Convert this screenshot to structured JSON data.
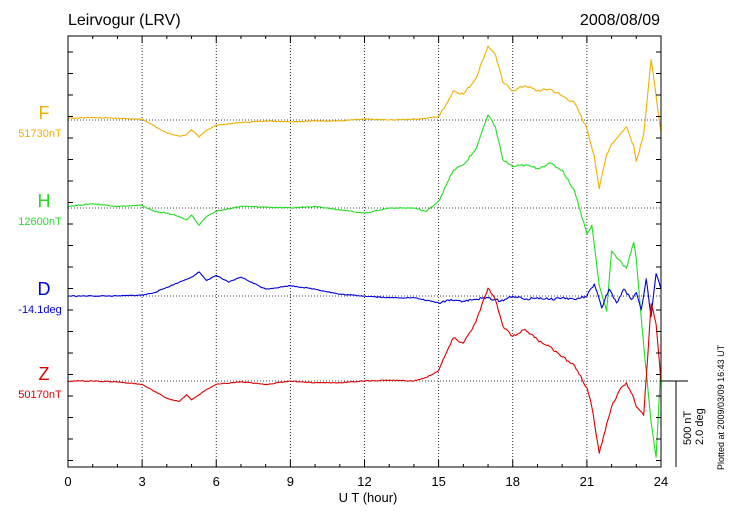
{
  "chart_data": {
    "type": "line",
    "title": "Leirvogur (LRV)",
    "date": "2008/08/09",
    "xlabel": "U T (hour)",
    "xlim": [
      0,
      24
    ],
    "xticks": [
      "0",
      "3",
      "6",
      "9",
      "12",
      "15",
      "18",
      "21",
      "24"
    ],
    "grid": true,
    "scale_bar": {
      "primary": "500 nT",
      "secondary": "2.0 deg"
    },
    "credit": "Plotted at 2009/03/09 16:43 UT",
    "colors": {
      "F": "#f0b000",
      "H": "#22dd22",
      "D": "#0000dd",
      "Z": "#dd0000"
    },
    "series": [
      {
        "name": "F",
        "baseline": "51730nT",
        "x": [
          0,
          1,
          2,
          3,
          3.5,
          4,
          4.5,
          4.8,
          5,
          5.3,
          5.6,
          6,
          7,
          8,
          9,
          10,
          11,
          12,
          13,
          14,
          14.5,
          15,
          15.3,
          15.6,
          16,
          16.5,
          17,
          17.3,
          17.6,
          18,
          18.5,
          19,
          19.5,
          20,
          20.5,
          21,
          21.3,
          21.5,
          21.8,
          22,
          22.3,
          22.6,
          22.9,
          23,
          23.3,
          23.6,
          23.8,
          24
        ],
        "y": [
          10,
          15,
          10,
          5,
          -35,
          -75,
          -95,
          -85,
          -55,
          -100,
          -60,
          -30,
          -15,
          -5,
          -10,
          -5,
          -5,
          5,
          0,
          5,
          10,
          20,
          90,
          170,
          150,
          240,
          430,
          380,
          220,
          170,
          200,
          170,
          180,
          140,
          100,
          -50,
          -210,
          -400,
          -200,
          -140,
          -90,
          -40,
          -150,
          -240,
          -80,
          350,
          140,
          -70
        ]
      },
      {
        "name": "H",
        "baseline": "12600nT",
        "x": [
          0,
          1,
          2,
          3,
          3.5,
          4,
          4.5,
          4.8,
          5,
          5.3,
          5.6,
          6,
          7,
          8,
          9,
          10,
          11,
          12,
          13,
          14,
          14.5,
          15,
          15.3,
          15.6,
          16,
          16.5,
          17,
          17.3,
          17.6,
          18,
          18.5,
          19,
          19.5,
          20,
          20.5,
          21,
          21.2,
          21.5,
          21.8,
          22,
          22.3,
          22.6,
          22.9,
          23,
          23.3,
          23.6,
          23.8,
          24
        ],
        "y": [
          10,
          25,
          10,
          15,
          -20,
          -30,
          -50,
          -70,
          -40,
          -100,
          -50,
          -20,
          10,
          5,
          0,
          10,
          -10,
          -30,
          0,
          0,
          -20,
          40,
          130,
          220,
          250,
          340,
          540,
          470,
          280,
          240,
          250,
          230,
          260,
          220,
          100,
          -150,
          -100,
          -450,
          -600,
          -250,
          -300,
          -350,
          -200,
          -300,
          -800,
          -1250,
          -1450,
          -900
        ]
      },
      {
        "name": "D",
        "baseline": "-14.1deg",
        "x": [
          0,
          1,
          2,
          3,
          3.5,
          4,
          4.5,
          5,
          5.3,
          5.6,
          6,
          6.5,
          7,
          8,
          9,
          10,
          11,
          12,
          13,
          14,
          15,
          15.5,
          16,
          16.5,
          17,
          17.5,
          18,
          18.5,
          19,
          19.5,
          20,
          20.5,
          21,
          21.3,
          21.6,
          21.9,
          22.2,
          22.5,
          22.8,
          23,
          23.2,
          23.4,
          23.6,
          23.8,
          24
        ],
        "y": [
          0,
          0,
          0,
          5,
          20,
          50,
          80,
          110,
          140,
          90,
          120,
          80,
          110,
          40,
          60,
          40,
          10,
          0,
          -10,
          -10,
          -40,
          -20,
          -30,
          -20,
          -10,
          -30,
          0,
          -20,
          -10,
          -20,
          -10,
          -20,
          0,
          70,
          -70,
          40,
          -40,
          40,
          -20,
          20,
          -80,
          100,
          -120,
          130,
          40
        ]
      },
      {
        "name": "Z",
        "baseline": "50170nT",
        "x": [
          0,
          1,
          2,
          3,
          3.5,
          4,
          4.5,
          4.8,
          5,
          5.3,
          5.6,
          6,
          7,
          8,
          9,
          10,
          11,
          12,
          13,
          14,
          14.5,
          15,
          15.3,
          15.6,
          16,
          16.5,
          17,
          17.3,
          17.6,
          18,
          18.5,
          19,
          19.5,
          20,
          20.5,
          21,
          21.2,
          21.5,
          21.8,
          22,
          22.3,
          22.6,
          22.9,
          23,
          23.3,
          23.6,
          23.8,
          24
        ],
        "y": [
          0,
          0,
          -5,
          -20,
          -60,
          -100,
          -120,
          -80,
          -110,
          -80,
          -50,
          -20,
          -5,
          -20,
          0,
          -10,
          -10,
          0,
          5,
          0,
          20,
          60,
          160,
          250,
          220,
          340,
          540,
          470,
          320,
          260,
          300,
          240,
          200,
          140,
          90,
          -40,
          -150,
          -420,
          -250,
          -150,
          -60,
          -10,
          -100,
          -150,
          -200,
          450,
          330,
          0
        ]
      }
    ]
  }
}
